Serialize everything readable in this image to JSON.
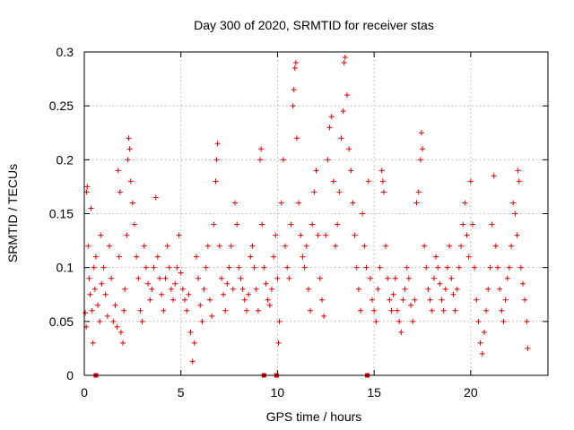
{
  "colors": {
    "series": "#e00000",
    "grid": "#a0a0a0",
    "axis": "#000000"
  },
  "chart_data": {
    "type": "scatter",
    "title": "Day 300 of 2020, SRMTID for receiver stas",
    "xlabel": "GPS time / hours",
    "ylabel": "SRMTID / TECUs",
    "xlim": [
      0,
      24
    ],
    "ylim": [
      0,
      0.3
    ],
    "xticks": [
      0,
      5,
      10,
      15,
      20
    ],
    "xtick_labels": [
      "0",
      "5",
      "10",
      "15",
      "20"
    ],
    "yticks": [
      0,
      0.05,
      0.1,
      0.15,
      0.2,
      0.25,
      0.3
    ],
    "ytick_labels": [
      "0",
      "0.05",
      "0.1",
      "0.15",
      "0.2",
      "0.25",
      "0.3"
    ],
    "grid": true,
    "marker": "+",
    "series": [
      {
        "name": "SRMTID",
        "points": [
          [
            0.05,
            0.058
          ],
          [
            0.1,
            0.045
          ],
          [
            0.12,
            0.17
          ],
          [
            0.15,
            0.175
          ],
          [
            0.2,
            0.12
          ],
          [
            0.25,
            0.09
          ],
          [
            0.3,
            0.075
          ],
          [
            0.35,
            0.155
          ],
          [
            0.4,
            0.06
          ],
          [
            0.45,
            0.03
          ],
          [
            0.5,
            0.1
          ],
          [
            0.55,
            0.08
          ],
          [
            0.6,
            0.11
          ],
          [
            0.7,
            0.065
          ],
          [
            0.8,
            0.05
          ],
          [
            0.85,
            0.13
          ],
          [
            0.9,
            0.085
          ],
          [
            1.0,
            0.1
          ],
          [
            1.1,
            0.075
          ],
          [
            1.2,
            0.055
          ],
          [
            1.3,
            0.12
          ],
          [
            1.4,
            0.09
          ],
          [
            1.5,
            0.05
          ],
          [
            1.6,
            0.065
          ],
          [
            1.7,
            0.045
          ],
          [
            1.75,
            0.19
          ],
          [
            1.8,
            0.11
          ],
          [
            1.85,
            0.17
          ],
          [
            1.9,
            0.04
          ],
          [
            2.0,
            0.03
          ],
          [
            2.05,
            0.06
          ],
          [
            2.1,
            0.08
          ],
          [
            2.2,
            0.13
          ],
          [
            2.25,
            0.2
          ],
          [
            2.3,
            0.22
          ],
          [
            2.35,
            0.21
          ],
          [
            2.4,
            0.18
          ],
          [
            2.5,
            0.16
          ],
          [
            2.6,
            0.14
          ],
          [
            2.7,
            0.11
          ],
          [
            2.8,
            0.09
          ],
          [
            2.9,
            0.06
          ],
          [
            3.0,
            0.05
          ],
          [
            3.1,
            0.12
          ],
          [
            3.2,
            0.1
          ],
          [
            3.3,
            0.085
          ],
          [
            3.4,
            0.07
          ],
          [
            3.5,
            0.08
          ],
          [
            3.6,
            0.1
          ],
          [
            3.7,
            0.165
          ],
          [
            3.8,
            0.11
          ],
          [
            3.9,
            0.09
          ],
          [
            4.0,
            0.075
          ],
          [
            4.1,
            0.06
          ],
          [
            4.2,
            0.09
          ],
          [
            4.3,
            0.12
          ],
          [
            4.4,
            0.1
          ],
          [
            4.5,
            0.08
          ],
          [
            4.6,
            0.07
          ],
          [
            4.7,
            0.085
          ],
          [
            4.8,
            0.1
          ],
          [
            4.9,
            0.13
          ],
          [
            5.0,
            0.095
          ],
          [
            5.1,
            0.08
          ],
          [
            5.2,
            0.07
          ],
          [
            5.3,
            0.06
          ],
          [
            5.4,
            0.075
          ],
          [
            5.5,
            0.04
          ],
          [
            5.6,
            0.013
          ],
          [
            5.7,
            0.03
          ],
          [
            5.8,
            0.11
          ],
          [
            5.9,
            0.09
          ],
          [
            6.0,
            0.065
          ],
          [
            6.1,
            0.05
          ],
          [
            6.2,
            0.08
          ],
          [
            6.3,
            0.1
          ],
          [
            6.4,
            0.12
          ],
          [
            6.5,
            0.07
          ],
          [
            6.6,
            0.055
          ],
          [
            6.7,
            0.14
          ],
          [
            6.8,
            0.18
          ],
          [
            6.85,
            0.2
          ],
          [
            6.9,
            0.215
          ],
          [
            7.0,
            0.12
          ],
          [
            7.1,
            0.09
          ],
          [
            7.2,
            0.075
          ],
          [
            7.3,
            0.06
          ],
          [
            7.4,
            0.085
          ],
          [
            7.5,
            0.1
          ],
          [
            7.6,
            0.12
          ],
          [
            7.7,
            0.08
          ],
          [
            7.8,
            0.16
          ],
          [
            7.9,
            0.14
          ],
          [
            8.0,
            0.1
          ],
          [
            8.1,
            0.09
          ],
          [
            8.2,
            0.08
          ],
          [
            8.3,
            0.07
          ],
          [
            8.4,
            0.06
          ],
          [
            8.5,
            0.075
          ],
          [
            8.6,
            0.11
          ],
          [
            8.7,
            0.12
          ],
          [
            8.8,
            0.1
          ],
          [
            8.9,
            0.08
          ],
          [
            9.0,
            0.06
          ],
          [
            9.1,
            0.2
          ],
          [
            9.15,
            0.21
          ],
          [
            9.2,
            0.14
          ],
          [
            9.3,
            0.1
          ],
          [
            9.4,
            0.085
          ],
          [
            9.5,
            0.07
          ],
          [
            9.6,
            0.065
          ],
          [
            9.7,
            0.08
          ],
          [
            9.8,
            0.11
          ],
          [
            9.9,
            0.13
          ],
          [
            10.0,
            0.09
          ],
          [
            10.05,
            0.03
          ],
          [
            10.1,
            0.05
          ],
          [
            10.2,
            0.16
          ],
          [
            10.3,
            0.2
          ],
          [
            10.4,
            0.12
          ],
          [
            10.5,
            0.1
          ],
          [
            10.6,
            0.09
          ],
          [
            10.7,
            0.14
          ],
          [
            10.8,
            0.25
          ],
          [
            10.85,
            0.265
          ],
          [
            10.9,
            0.285
          ],
          [
            10.95,
            0.29
          ],
          [
            11.0,
            0.22
          ],
          [
            11.1,
            0.16
          ],
          [
            11.2,
            0.13
          ],
          [
            11.3,
            0.11
          ],
          [
            11.4,
            0.1
          ],
          [
            11.5,
            0.12
          ],
          [
            11.6,
            0.08
          ],
          [
            11.7,
            0.06
          ],
          [
            11.8,
            0.14
          ],
          [
            11.9,
            0.17
          ],
          [
            12.0,
            0.19
          ],
          [
            12.1,
            0.13
          ],
          [
            12.2,
            0.09
          ],
          [
            12.3,
            0.07
          ],
          [
            12.4,
            0.055
          ],
          [
            12.5,
            0.13
          ],
          [
            12.6,
            0.2
          ],
          [
            12.7,
            0.23
          ],
          [
            12.8,
            0.24
          ],
          [
            12.9,
            0.18
          ],
          [
            13.0,
            0.12
          ],
          [
            13.1,
            0.14
          ],
          [
            13.2,
            0.17
          ],
          [
            13.3,
            0.22
          ],
          [
            13.4,
            0.245
          ],
          [
            13.45,
            0.29
          ],
          [
            13.5,
            0.295
          ],
          [
            13.6,
            0.26
          ],
          [
            13.7,
            0.21
          ],
          [
            13.8,
            0.19
          ],
          [
            13.9,
            0.16
          ],
          [
            14.0,
            0.13
          ],
          [
            14.1,
            0.1
          ],
          [
            14.2,
            0.08
          ],
          [
            14.3,
            0.06
          ],
          [
            14.4,
            0.15
          ],
          [
            14.5,
            0.12
          ],
          [
            14.6,
            0.1
          ],
          [
            14.7,
            0.18
          ],
          [
            14.8,
            0.09
          ],
          [
            14.9,
            0.07
          ],
          [
            15.0,
            0.06
          ],
          [
            15.1,
            0.05
          ],
          [
            15.2,
            0.08
          ],
          [
            15.3,
            0.1
          ],
          [
            15.4,
            0.19
          ],
          [
            15.45,
            0.18
          ],
          [
            15.5,
            0.17
          ],
          [
            15.6,
            0.12
          ],
          [
            15.7,
            0.09
          ],
          [
            15.8,
            0.07
          ],
          [
            15.9,
            0.06
          ],
          [
            16.0,
            0.075
          ],
          [
            16.1,
            0.09
          ],
          [
            16.2,
            0.06
          ],
          [
            16.3,
            0.05
          ],
          [
            16.4,
            0.04
          ],
          [
            16.5,
            0.07
          ],
          [
            16.6,
            0.08
          ],
          [
            16.7,
            0.1
          ],
          [
            16.8,
            0.09
          ],
          [
            16.9,
            0.065
          ],
          [
            17.0,
            0.05
          ],
          [
            17.1,
            0.07
          ],
          [
            17.2,
            0.16
          ],
          [
            17.3,
            0.17
          ],
          [
            17.4,
            0.2
          ],
          [
            17.45,
            0.225
          ],
          [
            17.5,
            0.21
          ],
          [
            17.6,
            0.12
          ],
          [
            17.7,
            0.1
          ],
          [
            17.8,
            0.08
          ],
          [
            17.9,
            0.07
          ],
          [
            18.0,
            0.06
          ],
          [
            18.1,
            0.09
          ],
          [
            18.2,
            0.11
          ],
          [
            18.3,
            0.1
          ],
          [
            18.4,
            0.085
          ],
          [
            18.5,
            0.07
          ],
          [
            18.6,
            0.06
          ],
          [
            18.7,
            0.08
          ],
          [
            18.8,
            0.1
          ],
          [
            18.9,
            0.12
          ],
          [
            19.0,
            0.09
          ],
          [
            19.1,
            0.075
          ],
          [
            19.2,
            0.06
          ],
          [
            19.3,
            0.08
          ],
          [
            19.4,
            0.1
          ],
          [
            19.5,
            0.12
          ],
          [
            19.6,
            0.14
          ],
          [
            19.7,
            0.16
          ],
          [
            19.8,
            0.13
          ],
          [
            19.9,
            0.11
          ],
          [
            20.0,
            0.18
          ],
          [
            20.1,
            0.14
          ],
          [
            20.2,
            0.1
          ],
          [
            20.3,
            0.07
          ],
          [
            20.4,
            0.05
          ],
          [
            20.5,
            0.03
          ],
          [
            20.6,
            0.02
          ],
          [
            20.7,
            0.04
          ],
          [
            20.8,
            0.06
          ],
          [
            20.9,
            0.08
          ],
          [
            21.0,
            0.1
          ],
          [
            21.1,
            0.14
          ],
          [
            21.2,
            0.185
          ],
          [
            21.3,
            0.12
          ],
          [
            21.4,
            0.1
          ],
          [
            21.5,
            0.08
          ],
          [
            21.6,
            0.06
          ],
          [
            21.7,
            0.05
          ],
          [
            21.8,
            0.07
          ],
          [
            21.9,
            0.09
          ],
          [
            22.0,
            0.1
          ],
          [
            22.1,
            0.12
          ],
          [
            22.2,
            0.16
          ],
          [
            22.3,
            0.15
          ],
          [
            22.4,
            0.13
          ],
          [
            22.45,
            0.19
          ],
          [
            22.5,
            0.18
          ],
          [
            22.6,
            0.1
          ],
          [
            22.7,
            0.085
          ],
          [
            22.8,
            0.07
          ],
          [
            22.9,
            0.05
          ],
          [
            22.95,
            0.025
          ]
        ]
      }
    ],
    "gap_markers_x": [
      0.6,
      9.3,
      9.95,
      14.65
    ]
  }
}
